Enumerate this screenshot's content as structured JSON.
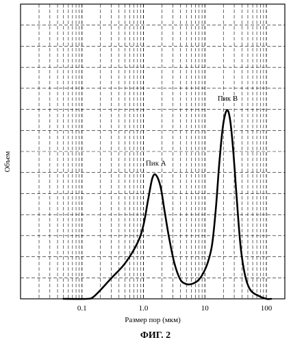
{
  "chart_data": {
    "type": "line",
    "title": "",
    "xlabel": "Размер пор (мкм)",
    "ylabel": "Объем",
    "x_scale": "log",
    "xlim": [
      0.01,
      200
    ],
    "ylim": [
      0,
      1
    ],
    "x_tick_labels": [
      "0.1",
      "1.0",
      "10",
      "100"
    ],
    "x_tick_values": [
      0.1,
      1,
      10,
      100
    ],
    "grid": true,
    "grid_style": "dashed",
    "series": [
      {
        "x": [
          0.05,
          0.12,
          0.15,
          0.2,
          0.3,
          0.5,
          0.8,
          1.0,
          1.2,
          1.4,
          1.6,
          1.9,
          2.2,
          2.6,
          3.2,
          4.0,
          5.0,
          6.0,
          7.5,
          9.0,
          11.0,
          13.0,
          15.0,
          17.0,
          19.0,
          21.0,
          23.5,
          26.0,
          29.0,
          33.0,
          38.0,
          45.0,
          55.0,
          75.0,
          100.0,
          120.0
        ],
        "y": [
          0.0,
          0.0,
          0.005,
          0.03,
          0.07,
          0.12,
          0.19,
          0.25,
          0.34,
          0.41,
          0.42,
          0.38,
          0.3,
          0.21,
          0.12,
          0.065,
          0.05,
          0.05,
          0.06,
          0.08,
          0.12,
          0.18,
          0.3,
          0.45,
          0.56,
          0.62,
          0.64,
          0.6,
          0.5,
          0.34,
          0.18,
          0.08,
          0.03,
          0.01,
          0.0,
          0.0
        ]
      }
    ],
    "annotations": [
      {
        "text": "Пик А",
        "x": 1.6,
        "y": 0.42
      },
      {
        "text": "Пик В",
        "x": 23.5,
        "y": 0.64
      }
    ]
  },
  "caption": "ФИГ. 2"
}
